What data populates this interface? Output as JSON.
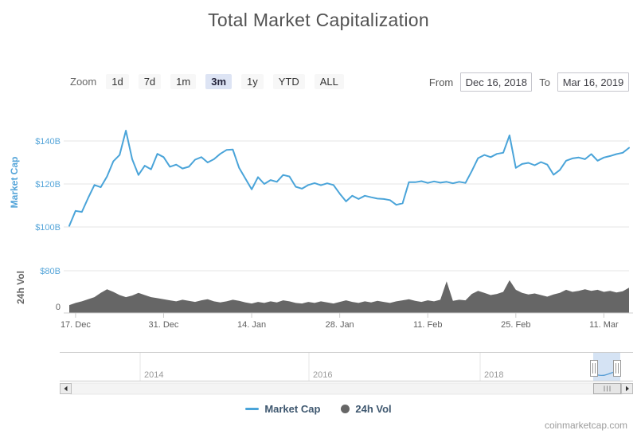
{
  "toolbar": {
    "zoom_label": "Zoom",
    "buttons": [
      {
        "label": "1d",
        "selected": false
      },
      {
        "label": "7d",
        "selected": false
      },
      {
        "label": "1m",
        "selected": false
      },
      {
        "label": "3m",
        "selected": true
      },
      {
        "label": "1y",
        "selected": false
      },
      {
        "label": "YTD",
        "selected": false
      },
      {
        "label": "ALL",
        "selected": false
      }
    ],
    "from_label": "From",
    "from_value": "Dec 16, 2018",
    "to_label": "To",
    "to_value": "Mar 16, 2019"
  },
  "legend": [
    {
      "label": "Market Cap",
      "marker": "line",
      "color": "#4aa4d9"
    },
    {
      "label": "24h Vol",
      "marker": "circle",
      "color": "#666666"
    }
  ],
  "attribution": "coinmarketcap.com",
  "navigator": {
    "year_labels": [
      "2014",
      "2016",
      "2018"
    ],
    "selected_from": "Dec 16, 2018",
    "selected_to": "Mar 16, 2019"
  },
  "colors": {
    "line_blue": "#4aa4d9",
    "axis_label_blue": "#55a5d9",
    "volume_gray": "#666666",
    "selected_button_bg": "#dde4f4",
    "grid": "#e6e6e6"
  },
  "chart_data": {
    "type": "line",
    "title": "Total Market Capitalization",
    "x_range_labels": [
      "Dec 16, 2018",
      "Mar 16, 2019"
    ],
    "x_unit": "days since Dec 16, 2018",
    "grid": true,
    "x_ticks": [
      {
        "label": "17. Dec",
        "day": 1
      },
      {
        "label": "31. Dec",
        "day": 15
      },
      {
        "label": "14. Jan",
        "day": 29
      },
      {
        "label": "28. Jan",
        "day": 43
      },
      {
        "label": "11. Feb",
        "day": 57
      },
      {
        "label": "25. Feb",
        "day": 71
      },
      {
        "label": "11. Mar",
        "day": 85
      }
    ],
    "series": [
      {
        "name": "Market Cap",
        "type": "line",
        "color": "#4aa4d9",
        "unit": "$B",
        "axis_title": "Market Cap",
        "y_ticks": [
          {
            "label": "$140B",
            "value": 140
          },
          {
            "label": "$120B",
            "value": 120
          },
          {
            "label": "$100B",
            "value": 100
          }
        ],
        "ylim": [
          97,
          148
        ],
        "values": [
          100.5,
          107.5,
          107.0,
          113.5,
          119.5,
          118.5,
          123.5,
          130.5,
          133.5,
          144.8,
          131.5,
          124.2,
          128.5,
          126.8,
          134.0,
          132.5,
          128.0,
          129.0,
          127.2,
          128.0,
          131.3,
          132.5,
          130.0,
          131.5,
          134.0,
          135.8,
          136.0,
          127.5,
          122.5,
          117.5,
          123.2,
          120.0,
          121.8,
          121.0,
          124.2,
          123.5,
          118.7,
          117.8,
          119.5,
          120.4,
          119.4,
          120.3,
          119.5,
          115.5,
          111.9,
          114.5,
          113.0,
          114.5,
          113.8,
          113.2,
          113.0,
          112.5,
          110.3,
          111.0,
          120.8,
          120.8,
          121.3,
          120.5,
          121.2,
          120.6,
          121.0,
          120.3,
          121.0,
          120.5,
          126.0,
          132.0,
          133.5,
          132.5,
          134.0,
          134.5,
          142.6,
          127.5,
          129.3,
          129.8,
          128.7,
          130.2,
          129.0,
          124.3,
          126.5,
          130.8,
          131.9,
          132.3,
          131.5,
          133.9,
          130.8,
          132.3,
          133.0,
          133.9,
          134.5,
          136.8
        ]
      },
      {
        "name": "24h Vol",
        "type": "area",
        "color": "#666666",
        "unit": "$B",
        "axis_title": "24h Vol",
        "y_ticks": [
          {
            "label": "$80B",
            "value": 80
          },
          {
            "label": "0",
            "value": 0
          }
        ],
        "ylim": [
          0,
          80
        ],
        "values": [
          15,
          19,
          22,
          26,
          30,
          38,
          45,
          40,
          34,
          30,
          33,
          38,
          34,
          30,
          28,
          26,
          24,
          22,
          25,
          23,
          21,
          24,
          26,
          22,
          20,
          22,
          25,
          23,
          20,
          18,
          21,
          19,
          22,
          20,
          24,
          22,
          19,
          18,
          21,
          19,
          22,
          20,
          18,
          21,
          24,
          21,
          19,
          22,
          20,
          23,
          21,
          19,
          22,
          24,
          26,
          23,
          21,
          24,
          22,
          25,
          60,
          23,
          25,
          24,
          36,
          42,
          38,
          34,
          36,
          40,
          62,
          44,
          38,
          35,
          37,
          34,
          31,
          35,
          38,
          44,
          40,
          42,
          45,
          42,
          44,
          40,
          42,
          39,
          41,
          48
        ]
      }
    ]
  }
}
